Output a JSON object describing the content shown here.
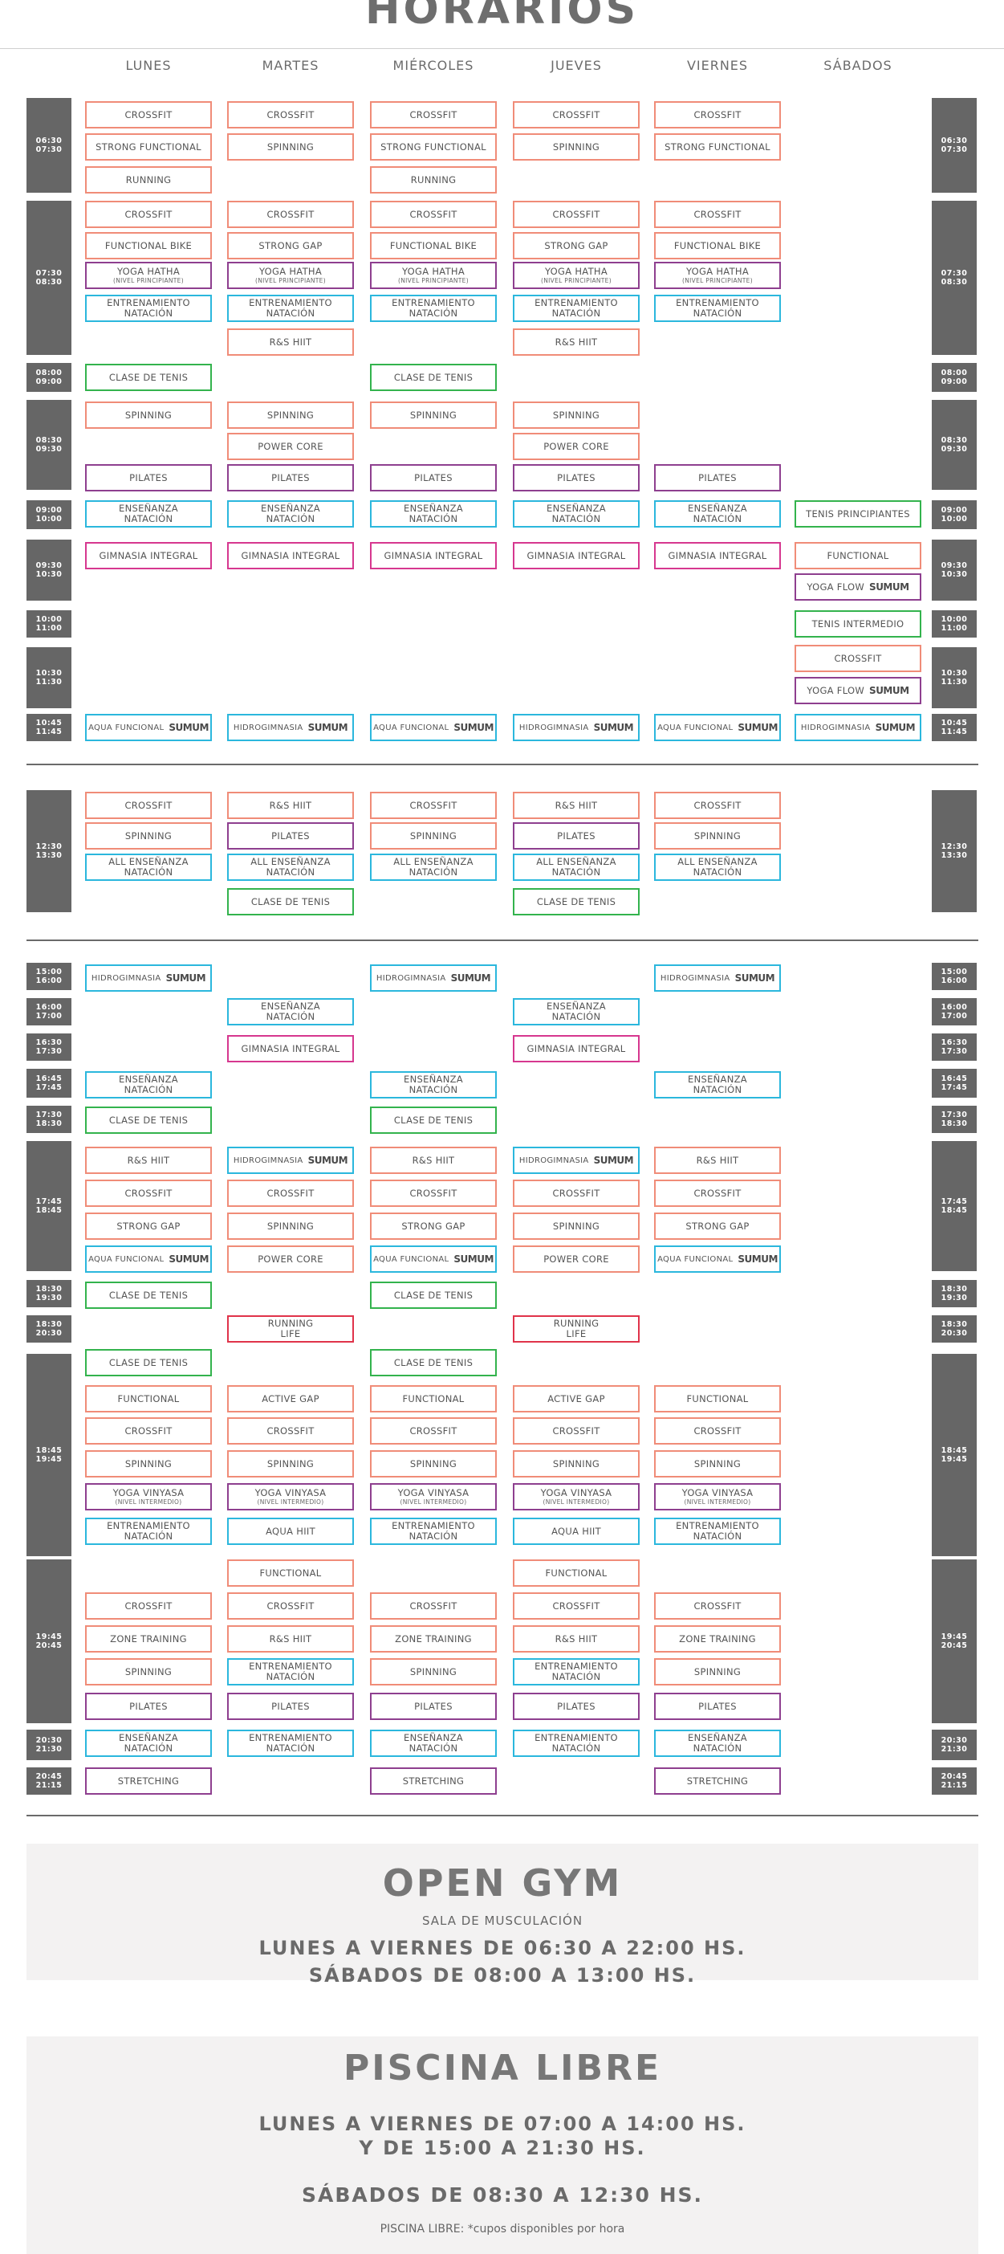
{
  "title": "HORARIOS",
  "days": [
    "LUNES",
    "MARTES",
    "MIÉRCOLES",
    "JUEVES",
    "VIERNES",
    "SÁBADOS"
  ],
  "colors": {
    "orange": "#f08c78",
    "purple": "#8e3f8f",
    "cyan": "#2bb7dd",
    "green": "#33b34d",
    "pink": "#d6378f",
    "red": "#e0334a",
    "timeblock": "#666666"
  },
  "brand_logo": "SUMUM",
  "time_blocks": [
    {
      "start": "06:30",
      "end": "07:30"
    },
    {
      "start": "07:30",
      "end": "08:30"
    },
    {
      "start": "08:00",
      "end": "09:00"
    },
    {
      "start": "08:30",
      "end": "09:30"
    },
    {
      "start": "09:00",
      "end": "10:00"
    },
    {
      "start": "09:30",
      "end": "10:30"
    },
    {
      "start": "10:00",
      "end": "11:00"
    },
    {
      "start": "10:30",
      "end": "11:30"
    },
    {
      "start": "10:45",
      "end": "11:45"
    },
    {
      "start": "12:30",
      "end": "13:30"
    },
    {
      "start": "15:00",
      "end": "16:00"
    },
    {
      "start": "16:00",
      "end": "17:00"
    },
    {
      "start": "16:30",
      "end": "17:30"
    },
    {
      "start": "16:45",
      "end": "17:45"
    },
    {
      "start": "17:30",
      "end": "18:30"
    },
    {
      "start": "17:45",
      "end": "18:45"
    },
    {
      "start": "18:30",
      "end": "19:30"
    },
    {
      "start": "18:30",
      "end": "20:30"
    },
    {
      "start": "18:45",
      "end": "19:45"
    },
    {
      "start": "19:45",
      "end": "20:45"
    },
    {
      "start": "20:30",
      "end": "21:30"
    },
    {
      "start": "20:45",
      "end": "21:15"
    }
  ],
  "classes": [
    {
      "day": 0,
      "label": "CROSSFIT",
      "color": "orange"
    },
    {
      "day": 1,
      "label": "CROSSFIT",
      "color": "orange"
    },
    {
      "day": 2,
      "label": "CROSSFIT",
      "color": "orange"
    },
    {
      "day": 3,
      "label": "CROSSFIT",
      "color": "orange"
    },
    {
      "day": 4,
      "label": "CROSSFIT",
      "color": "orange"
    },
    {
      "day": 0,
      "label": "STRONG FUNCTIONAL",
      "color": "orange"
    },
    {
      "day": 1,
      "label": "SPINNING",
      "color": "orange"
    },
    {
      "day": 2,
      "label": "STRONG FUNCTIONAL",
      "color": "orange"
    },
    {
      "day": 3,
      "label": "SPINNING",
      "color": "orange"
    },
    {
      "day": 4,
      "label": "STRONG FUNCTIONAL",
      "color": "orange"
    },
    {
      "day": 0,
      "label": "RUNNING",
      "color": "orange"
    },
    {
      "day": 2,
      "label": "RUNNING",
      "color": "orange"
    },
    {
      "day": 0,
      "label": "CROSSFIT",
      "color": "orange"
    },
    {
      "day": 1,
      "label": "CROSSFIT",
      "color": "orange"
    },
    {
      "day": 2,
      "label": "CROSSFIT",
      "color": "orange"
    },
    {
      "day": 3,
      "label": "CROSSFIT",
      "color": "orange"
    },
    {
      "day": 4,
      "label": "CROSSFIT",
      "color": "orange"
    },
    {
      "day": 0,
      "label": "FUNCTIONAL BIKE",
      "color": "orange"
    },
    {
      "day": 1,
      "label": "STRONG GAP",
      "color": "orange"
    },
    {
      "day": 2,
      "label": "FUNCTIONAL BIKE",
      "color": "orange"
    },
    {
      "day": 3,
      "label": "STRONG GAP",
      "color": "orange"
    },
    {
      "day": 4,
      "label": "FUNCTIONAL BIKE",
      "color": "orange"
    },
    {
      "day": 0,
      "label": "YOGA HATHA",
      "sub": "(NIVEL PRINCIPIANTE)",
      "color": "purple"
    },
    {
      "day": 1,
      "label": "YOGA HATHA",
      "sub": "(NIVEL PRINCIPIANTE)",
      "color": "purple"
    },
    {
      "day": 2,
      "label": "YOGA HATHA",
      "sub": "(NIVEL PRINCIPIANTE)",
      "color": "purple"
    },
    {
      "day": 3,
      "label": "YOGA HATHA",
      "sub": "(NIVEL PRINCIPIANTE)",
      "color": "purple"
    },
    {
      "day": 4,
      "label": "YOGA HATHA",
      "sub": "(NIVEL PRINCIPIANTE)",
      "color": "purple"
    },
    {
      "day": 0,
      "label": "ENTRENAMIENTO",
      "label2": "NATACIÓN",
      "color": "cyan"
    },
    {
      "day": 1,
      "label": "ENTRENAMIENTO",
      "label2": "NATACIÓN",
      "color": "cyan"
    },
    {
      "day": 2,
      "label": "ENTRENAMIENTO",
      "label2": "NATACIÓN",
      "color": "cyan"
    },
    {
      "day": 3,
      "label": "ENTRENAMIENTO",
      "label2": "NATACIÓN",
      "color": "cyan"
    },
    {
      "day": 4,
      "label": "ENTRENAMIENTO",
      "label2": "NATACIÓN",
      "color": "cyan"
    },
    {
      "day": 1,
      "label": "R&S HIIT",
      "color": "orange"
    },
    {
      "day": 3,
      "label": "R&S HIIT",
      "color": "orange"
    },
    {
      "day": 0,
      "label": "CLASE DE TENIS",
      "color": "green"
    },
    {
      "day": 2,
      "label": "CLASE DE TENIS",
      "color": "green"
    },
    {
      "day": 0,
      "label": "SPINNING",
      "color": "orange"
    },
    {
      "day": 1,
      "label": "SPINNING",
      "color": "orange"
    },
    {
      "day": 2,
      "label": "SPINNING",
      "color": "orange"
    },
    {
      "day": 3,
      "label": "SPINNING",
      "color": "orange"
    },
    {
      "day": 1,
      "label": "POWER CORE",
      "color": "orange"
    },
    {
      "day": 3,
      "label": "POWER CORE",
      "color": "orange"
    },
    {
      "day": 0,
      "label": "PILATES",
      "color": "purple"
    },
    {
      "day": 1,
      "label": "PILATES",
      "color": "purple"
    },
    {
      "day": 2,
      "label": "PILATES",
      "color": "purple"
    },
    {
      "day": 3,
      "label": "PILATES",
      "color": "purple"
    },
    {
      "day": 4,
      "label": "PILATES",
      "color": "purple"
    },
    {
      "day": 0,
      "label": "ENSEÑANZA",
      "label2": "NATACIÓN",
      "color": "cyan"
    },
    {
      "day": 1,
      "label": "ENSEÑANZA",
      "label2": "NATACIÓN",
      "color": "cyan"
    },
    {
      "day": 2,
      "label": "ENSEÑANZA",
      "label2": "NATACIÓN",
      "color": "cyan"
    },
    {
      "day": 3,
      "label": "ENSEÑANZA",
      "label2": "NATACIÓN",
      "color": "cyan"
    },
    {
      "day": 4,
      "label": "ENSEÑANZA",
      "label2": "NATACIÓN",
      "color": "cyan"
    },
    {
      "day": 5,
      "label": "TENIS PRINCIPIANTES",
      "color": "green"
    },
    {
      "day": 0,
      "label": "GIMNASIA INTEGRAL",
      "color": "pink"
    },
    {
      "day": 1,
      "label": "GIMNASIA INTEGRAL",
      "color": "pink"
    },
    {
      "day": 2,
      "label": "GIMNASIA INTEGRAL",
      "color": "pink"
    },
    {
      "day": 3,
      "label": "GIMNASIA INTEGRAL",
      "color": "pink"
    },
    {
      "day": 4,
      "label": "GIMNASIA INTEGRAL",
      "color": "pink"
    },
    {
      "day": 5,
      "label": "FUNCTIONAL",
      "color": "orange"
    },
    {
      "day": 5,
      "label": "YOGA FLOW",
      "brand": true,
      "color": "purple"
    },
    {
      "day": 5,
      "label": "TENIS INTERMEDIO",
      "color": "green"
    },
    {
      "day": 5,
      "label": "CROSSFIT",
      "color": "orange"
    },
    {
      "day": 5,
      "label": "YOGA FLOW",
      "brand": true,
      "color": "purple"
    },
    {
      "day": 0,
      "label": "AQUA FUNCIONAL",
      "brand": true,
      "small": true,
      "color": "cyan"
    },
    {
      "day": 1,
      "label": "HIDROGIMNASIA",
      "brand": true,
      "small": true,
      "color": "cyan"
    },
    {
      "day": 2,
      "label": "AQUA FUNCIONAL",
      "brand": true,
      "small": true,
      "color": "cyan"
    },
    {
      "day": 3,
      "label": "HIDROGIMNASIA",
      "brand": true,
      "small": true,
      "color": "cyan"
    },
    {
      "day": 4,
      "label": "AQUA FUNCIONAL",
      "brand": true,
      "small": true,
      "color": "cyan"
    },
    {
      "day": 5,
      "label": "HIDROGIMNASIA",
      "brand": true,
      "small": true,
      "color": "cyan"
    },
    {
      "day": 0,
      "label": "CROSSFIT",
      "color": "orange"
    },
    {
      "day": 1,
      "label": "R&S HIIT",
      "color": "orange"
    },
    {
      "day": 2,
      "label": "CROSSFIT",
      "color": "orange"
    },
    {
      "day": 3,
      "label": "R&S HIIT",
      "color": "orange"
    },
    {
      "day": 4,
      "label": "CROSSFIT",
      "color": "orange"
    },
    {
      "day": 0,
      "label": "SPINNING",
      "color": "orange"
    },
    {
      "day": 1,
      "label": "PILATES",
      "color": "purple"
    },
    {
      "day": 2,
      "label": "SPINNING",
      "color": "orange"
    },
    {
      "day": 3,
      "label": "PILATES",
      "color": "purple"
    },
    {
      "day": 4,
      "label": "SPINNING",
      "color": "orange"
    },
    {
      "day": 0,
      "label": "ALL ENSEÑANZA",
      "label2": "NATACIÓN",
      "color": "cyan"
    },
    {
      "day": 1,
      "label": "ALL ENSEÑANZA",
      "label2": "NATACIÓN",
      "color": "cyan"
    },
    {
      "day": 2,
      "label": "ALL ENSEÑANZA",
      "label2": "NATACIÓN",
      "color": "cyan"
    },
    {
      "day": 3,
      "label": "ALL ENSEÑANZA",
      "label2": "NATACIÓN",
      "color": "cyan"
    },
    {
      "day": 4,
      "label": "ALL ENSEÑANZA",
      "label2": "NATACIÓN",
      "color": "cyan"
    },
    {
      "day": 1,
      "label": "CLASE DE TENIS",
      "color": "green"
    },
    {
      "day": 3,
      "label": "CLASE DE TENIS",
      "color": "green"
    },
    {
      "day": 0,
      "label": "HIDROGIMNASIA",
      "brand": true,
      "small": true,
      "color": "cyan"
    },
    {
      "day": 2,
      "label": "HIDROGIMNASIA",
      "brand": true,
      "small": true,
      "color": "cyan"
    },
    {
      "day": 4,
      "label": "HIDROGIMNASIA",
      "brand": true,
      "small": true,
      "color": "cyan"
    },
    {
      "day": 1,
      "label": "ENSEÑANZA",
      "label2": "NATACIÓN",
      "color": "cyan"
    },
    {
      "day": 3,
      "label": "ENSEÑANZA",
      "label2": "NATACIÓN",
      "color": "cyan"
    },
    {
      "day": 1,
      "label": "GIMNASIA INTEGRAL",
      "color": "pink"
    },
    {
      "day": 3,
      "label": "GIMNASIA INTEGRAL",
      "color": "pink"
    },
    {
      "day": 0,
      "label": "ENSEÑANZA",
      "label2": "NATACIÓN",
      "color": "cyan"
    },
    {
      "day": 2,
      "label": "ENSEÑANZA",
      "label2": "NATACIÓN",
      "color": "cyan"
    },
    {
      "day": 4,
      "label": "ENSEÑANZA",
      "label2": "NATACIÓN",
      "color": "cyan"
    },
    {
      "day": 0,
      "label": "CLASE DE TENIS",
      "color": "green"
    },
    {
      "day": 2,
      "label": "CLASE DE TENIS",
      "color": "green"
    },
    {
      "day": 0,
      "label": "R&S HIIT",
      "color": "orange"
    },
    {
      "day": 1,
      "label": "HIDROGIMNASIA",
      "brand": true,
      "small": true,
      "color": "cyan"
    },
    {
      "day": 2,
      "label": "R&S HIIT",
      "color": "orange"
    },
    {
      "day": 3,
      "label": "HIDROGIMNASIA",
      "brand": true,
      "small": true,
      "color": "cyan"
    },
    {
      "day": 4,
      "label": "R&S HIIT",
      "color": "orange"
    },
    {
      "day": 0,
      "label": "CROSSFIT",
      "color": "orange"
    },
    {
      "day": 1,
      "label": "CROSSFIT",
      "color": "orange"
    },
    {
      "day": 2,
      "label": "CROSSFIT",
      "color": "orange"
    },
    {
      "day": 3,
      "label": "CROSSFIT",
      "color": "orange"
    },
    {
      "day": 4,
      "label": "CROSSFIT",
      "color": "orange"
    },
    {
      "day": 0,
      "label": "STRONG GAP",
      "color": "orange"
    },
    {
      "day": 1,
      "label": "SPINNING",
      "color": "orange"
    },
    {
      "day": 2,
      "label": "STRONG GAP",
      "color": "orange"
    },
    {
      "day": 3,
      "label": "SPINNING",
      "color": "orange"
    },
    {
      "day": 4,
      "label": "STRONG GAP",
      "color": "orange"
    },
    {
      "day": 0,
      "label": "AQUA FUNCIONAL",
      "brand": true,
      "small": true,
      "color": "cyan"
    },
    {
      "day": 1,
      "label": "POWER CORE",
      "color": "orange"
    },
    {
      "day": 2,
      "label": "AQUA FUNCIONAL",
      "brand": true,
      "small": true,
      "color": "cyan"
    },
    {
      "day": 3,
      "label": "POWER CORE",
      "color": "orange"
    },
    {
      "day": 4,
      "label": "AQUA FUNCIONAL",
      "brand": true,
      "small": true,
      "color": "cyan"
    },
    {
      "day": 0,
      "label": "CLASE DE TENIS",
      "color": "green"
    },
    {
      "day": 2,
      "label": "CLASE DE TENIS",
      "color": "green"
    },
    {
      "day": 1,
      "label": "RUNNING",
      "label2": "LIFE",
      "color": "red"
    },
    {
      "day": 3,
      "label": "RUNNING",
      "label2": "LIFE",
      "color": "red"
    },
    {
      "day": 0,
      "label": "CLASE DE TENIS",
      "color": "green"
    },
    {
      "day": 2,
      "label": "CLASE DE TENIS",
      "color": "green"
    },
    {
      "day": 0,
      "label": "FUNCTIONAL",
      "color": "orange"
    },
    {
      "day": 1,
      "label": "ACTIVE GAP",
      "color": "orange"
    },
    {
      "day": 2,
      "label": "FUNCTIONAL",
      "color": "orange"
    },
    {
      "day": 3,
      "label": "ACTIVE GAP",
      "color": "orange"
    },
    {
      "day": 4,
      "label": "FUNCTIONAL",
      "color": "orange"
    },
    {
      "day": 0,
      "label": "CROSSFIT",
      "color": "orange"
    },
    {
      "day": 1,
      "label": "CROSSFIT",
      "color": "orange"
    },
    {
      "day": 2,
      "label": "CROSSFIT",
      "color": "orange"
    },
    {
      "day": 3,
      "label": "CROSSFIT",
      "color": "orange"
    },
    {
      "day": 4,
      "label": "CROSSFIT",
      "color": "orange"
    },
    {
      "day": 0,
      "label": "SPINNING",
      "color": "orange"
    },
    {
      "day": 1,
      "label": "SPINNING",
      "color": "orange"
    },
    {
      "day": 2,
      "label": "SPINNING",
      "color": "orange"
    },
    {
      "day": 3,
      "label": "SPINNING",
      "color": "orange"
    },
    {
      "day": 4,
      "label": "SPINNING",
      "color": "orange"
    },
    {
      "day": 0,
      "label": "YOGA VINYASA",
      "sub": "(NIVEL INTERMEDIO)",
      "color": "purple"
    },
    {
      "day": 1,
      "label": "YOGA VINYASA",
      "sub": "(NIVEL INTERMEDIO)",
      "color": "purple"
    },
    {
      "day": 2,
      "label": "YOGA VINYASA",
      "sub": "(NIVEL INTERMEDIO)",
      "color": "purple"
    },
    {
      "day": 3,
      "label": "YOGA VINYASA",
      "sub": "(NIVEL INTERMEDIO)",
      "color": "purple"
    },
    {
      "day": 4,
      "label": "YOGA VINYASA",
      "sub": "(NIVEL INTERMEDIO)",
      "color": "purple"
    },
    {
      "day": 0,
      "label": "ENTRENAMIENTO",
      "label2": "NATACIÓN",
      "color": "cyan"
    },
    {
      "day": 1,
      "label": "AQUA HIIT",
      "color": "cyan"
    },
    {
      "day": 2,
      "label": "ENTRENAMIENTO",
      "label2": "NATACIÓN",
      "color": "cyan"
    },
    {
      "day": 3,
      "label": "AQUA HIIT",
      "color": "cyan"
    },
    {
      "day": 4,
      "label": "ENTRENAMIENTO",
      "label2": "NATACIÓN",
      "color": "cyan"
    },
    {
      "day": 1,
      "label": "FUNCTIONAL",
      "color": "orange"
    },
    {
      "day": 3,
      "label": "FUNCTIONAL",
      "color": "orange"
    },
    {
      "day": 0,
      "label": "CROSSFIT",
      "color": "orange"
    },
    {
      "day": 1,
      "label": "CROSSFIT",
      "color": "orange"
    },
    {
      "day": 2,
      "label": "CROSSFIT",
      "color": "orange"
    },
    {
      "day": 3,
      "label": "CROSSFIT",
      "color": "orange"
    },
    {
      "day": 4,
      "label": "CROSSFIT",
      "color": "orange"
    },
    {
      "day": 0,
      "label": "ZONE TRAINING",
      "color": "orange"
    },
    {
      "day": 1,
      "label": "R&S HIIT",
      "color": "orange"
    },
    {
      "day": 2,
      "label": "ZONE TRAINING",
      "color": "orange"
    },
    {
      "day": 3,
      "label": "R&S HIIT",
      "color": "orange"
    },
    {
      "day": 4,
      "label": "ZONE TRAINING",
      "color": "orange"
    },
    {
      "day": 0,
      "label": "SPINNING",
      "color": "orange"
    },
    {
      "day": 1,
      "label": "ENTRENAMIENTO",
      "label2": "NATACIÓN",
      "color": "cyan"
    },
    {
      "day": 2,
      "label": "SPINNING",
      "color": "orange"
    },
    {
      "day": 3,
      "label": "ENTRENAMIENTO",
      "label2": "NATACIÓN",
      "color": "cyan"
    },
    {
      "day": 4,
      "label": "SPINNING",
      "color": "orange"
    },
    {
      "day": 0,
      "label": "PILATES",
      "color": "purple"
    },
    {
      "day": 1,
      "label": "PILATES",
      "color": "purple"
    },
    {
      "day": 2,
      "label": "PILATES",
      "color": "purple"
    },
    {
      "day": 3,
      "label": "PILATES",
      "color": "purple"
    },
    {
      "day": 4,
      "label": "PILATES",
      "color": "purple"
    },
    {
      "day": 0,
      "label": "ENSEÑANZA",
      "label2": "NATACIÓN",
      "color": "cyan"
    },
    {
      "day": 1,
      "label": "ENTRENAMIENTO",
      "label2": "NATACIÓN",
      "color": "cyan"
    },
    {
      "day": 2,
      "label": "ENSEÑANZA",
      "label2": "NATACIÓN",
      "color": "cyan"
    },
    {
      "day": 3,
      "label": "ENTRENAMIENTO",
      "label2": "NATACIÓN",
      "color": "cyan"
    },
    {
      "day": 4,
      "label": "ENSEÑANZA",
      "label2": "NATACIÓN",
      "color": "cyan"
    },
    {
      "day": 0,
      "label": "STRETCHING",
      "color": "purple"
    },
    {
      "day": 2,
      "label": "STRETCHING",
      "color": "purple"
    },
    {
      "day": 4,
      "label": "STRETCHING",
      "color": "purple"
    }
  ],
  "open_gym": {
    "title": "OPEN GYM",
    "subtitle": "SALA DE MUSCULACIÓN",
    "line1": "LUNES A VIERNES DE 06:30 A 22:00 HS.",
    "line2": "SÁBADOS DE 08:00 A 13:00 HS."
  },
  "piscina": {
    "title": "PISCINA LIBRE",
    "line1": "LUNES A VIERNES DE 07:00 A 14:00 HS.",
    "line2": "Y DE 15:00 A 21:30 HS.",
    "line3": "SÁBADOS DE 08:30 A 12:30 HS.",
    "note": "PISCINA LIBRE: *cupos disponibles por hora"
  }
}
